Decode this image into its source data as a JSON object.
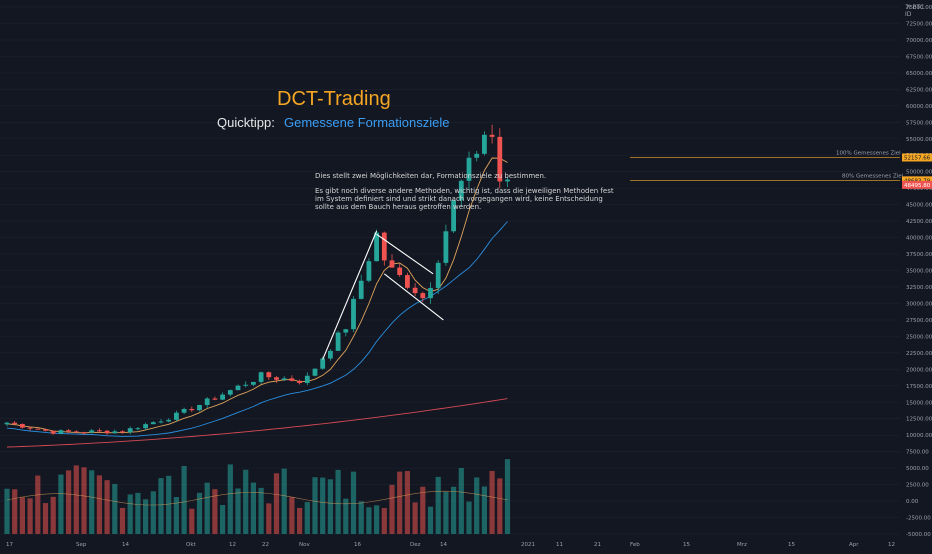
{
  "header": {
    "title": "DCT-Trading",
    "quicktip_label": "Quicktipp:",
    "quicktip_value": "Gemessene Formationsziele"
  },
  "note": {
    "line1": "Dies stellt zwei Möglichkeiten dar, Formationsziele zu bestimmen.",
    "line2": "Es gibt noch diverse andere Methoden, wichtig ist, dass die jeweiligen Methoden fest im System definiert sind und strikt danach vorgegangen wird, keine Entscheidung sollte aus dem Bauch heraus getroffen werden."
  },
  "axis_header": "7I BTC ID",
  "targets": [
    {
      "label": "100% Gemessenes  Ziel",
      "value": "52157.66",
      "color": "#f5a623"
    },
    {
      "label": "80% Gemessenes Ziel",
      "value": "48683.79",
      "color": "#f5a623"
    }
  ],
  "current_price_label": "48495.80",
  "colors": {
    "up": "#26a69a",
    "down": "#ef5350",
    "ma_fast": "#e0a35b",
    "ma_mid": "#2a8fe0",
    "ma_slow": "#d64a54",
    "target_line": "#d08f2a",
    "pattern": "#ffffff",
    "background": "#131722"
  },
  "chart_data": {
    "type": "candlestick",
    "symbol": "BTC",
    "y_ticks": [
      "75000.00",
      "72500.00",
      "70000.00",
      "67500.00",
      "65000.00",
      "62500.00",
      "60000.00",
      "57500.00",
      "55000.00",
      "52500.00",
      "50000.00",
      "47500.00",
      "45000.00",
      "42500.00",
      "40000.00",
      "37500.00",
      "35000.00",
      "32500.00",
      "30000.00",
      "27500.00",
      "25000.00",
      "22500.00",
      "20000.00",
      "17500.00",
      "15000.00",
      "12500.00",
      "10000.00",
      "7500.00",
      "5000.00",
      "2500.00",
      "0.00",
      "-2500.00",
      "-5000.00"
    ],
    "x_ticks": [
      "17",
      "Sep",
      "14",
      "Okt",
      "12",
      "22",
      "Nov",
      "16",
      "Dez",
      "14",
      "2021",
      "11",
      "21",
      "Feb",
      "15",
      "Mrz",
      "15",
      "Apr",
      "12"
    ],
    "ylim": [
      -5000,
      75000
    ],
    "price_keypoints": [
      {
        "date": "2020-08-17",
        "price": 11900
      },
      {
        "date": "2020-09-03",
        "price": 10500
      },
      {
        "date": "2020-10-01",
        "price": 10600
      },
      {
        "date": "2020-10-21",
        "price": 12900
      },
      {
        "date": "2020-11-05",
        "price": 15500
      },
      {
        "date": "2020-11-24",
        "price": 19000
      },
      {
        "date": "2020-12-11",
        "price": 18200
      },
      {
        "date": "2020-12-27",
        "price": 26500
      },
      {
        "date": "2021-01-08",
        "price": 40500
      },
      {
        "date": "2021-01-12",
        "price": 35500
      },
      {
        "date": "2021-01-22",
        "price": 32500
      },
      {
        "date": "2021-01-27",
        "price": 30500
      },
      {
        "date": "2021-02-08",
        "price": 46500
      },
      {
        "date": "2021-02-21",
        "price": 57500
      },
      {
        "date": "2021-02-26",
        "price": 46500
      },
      {
        "date": "2021-03-01",
        "price": 48500
      }
    ],
    "annotations": [
      {
        "label": "100% Gemessenes  Ziel",
        "value": 52157.66
      },
      {
        "label": "80% Gemessenes Ziel",
        "value": 48683.79
      }
    ]
  }
}
